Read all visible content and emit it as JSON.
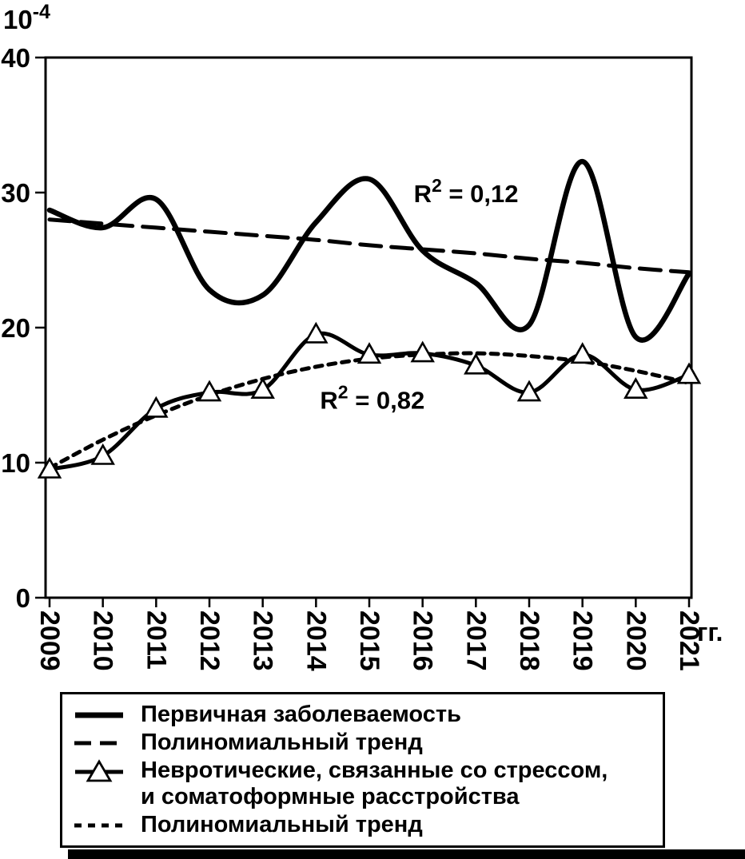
{
  "chart_data": {
    "type": "line",
    "title": "",
    "x_label": "гг.",
    "y_label_base": "10",
    "y_label_exponent": "-4",
    "x_categories": [
      "2009",
      "2010",
      "2011",
      "2012",
      "2013",
      "2014",
      "2015",
      "2016",
      "2017",
      "2018",
      "2019",
      "2020",
      "2021"
    ],
    "y_ticks": [
      0,
      10,
      20,
      30,
      40
    ],
    "ylim": [
      0,
      40
    ],
    "grid": false,
    "legend_position": "bottom",
    "series": [
      {
        "name": "Первичная заболеваемость",
        "role": "data",
        "line": "solid-thick",
        "marker": "none",
        "values": [
          28.7,
          27.4,
          29.5,
          22.8,
          22.4,
          27.8,
          31.0,
          25.7,
          23.3,
          20.2,
          32.3,
          19.3,
          24.0
        ]
      },
      {
        "name": "Полиномиальный тренд",
        "role": "trend",
        "line": "dashed",
        "marker": "none",
        "r_squared": "0,12",
        "values": [
          28.0,
          27.7,
          27.4,
          27.1,
          26.8,
          26.5,
          26.1,
          25.8,
          25.5,
          25.1,
          24.8,
          24.4,
          24.1
        ]
      },
      {
        "name": "Невротические, связанные со стрессом, и соматоформные расстройства",
        "role": "data",
        "line": "solid",
        "marker": "triangle",
        "values": [
          9.5,
          10.5,
          14.0,
          15.2,
          15.4,
          19.5,
          18.0,
          18.1,
          17.2,
          15.2,
          18.0,
          15.4,
          16.5
        ]
      },
      {
        "name": "Полиномиальный тренд",
        "role": "trend",
        "line": "dotted",
        "marker": "none",
        "r_squared": "0,82",
        "values": [
          9.6,
          11.7,
          13.5,
          15.0,
          16.2,
          17.1,
          17.7,
          18.0,
          18.1,
          17.9,
          17.5,
          16.8,
          15.9
        ]
      }
    ],
    "annotations": [
      {
        "base": "R",
        "sup": "2",
        "rest": " = 0,12",
        "x_frac": 0.57,
        "y_value": 29.3
      },
      {
        "base": "R",
        "sup": "2",
        "rest": " = 0,82",
        "x_frac": 0.425,
        "y_value": 14.0
      }
    ]
  },
  "legend": {
    "items": [
      {
        "label": "Первичная заболеваемость",
        "swatch": "solid-thick"
      },
      {
        "label": "Полиномиальный тренд",
        "swatch": "dashed"
      },
      {
        "label": "Невротические, связанные со стрессом, и соматоформные расстройства",
        "swatch": "triangle-line"
      },
      {
        "label": "Полиномиальный тренд",
        "swatch": "dotted"
      }
    ]
  },
  "colors": {
    "ink": "#000000",
    "background": "#ffffff",
    "marker_fill": "#ffffff"
  }
}
